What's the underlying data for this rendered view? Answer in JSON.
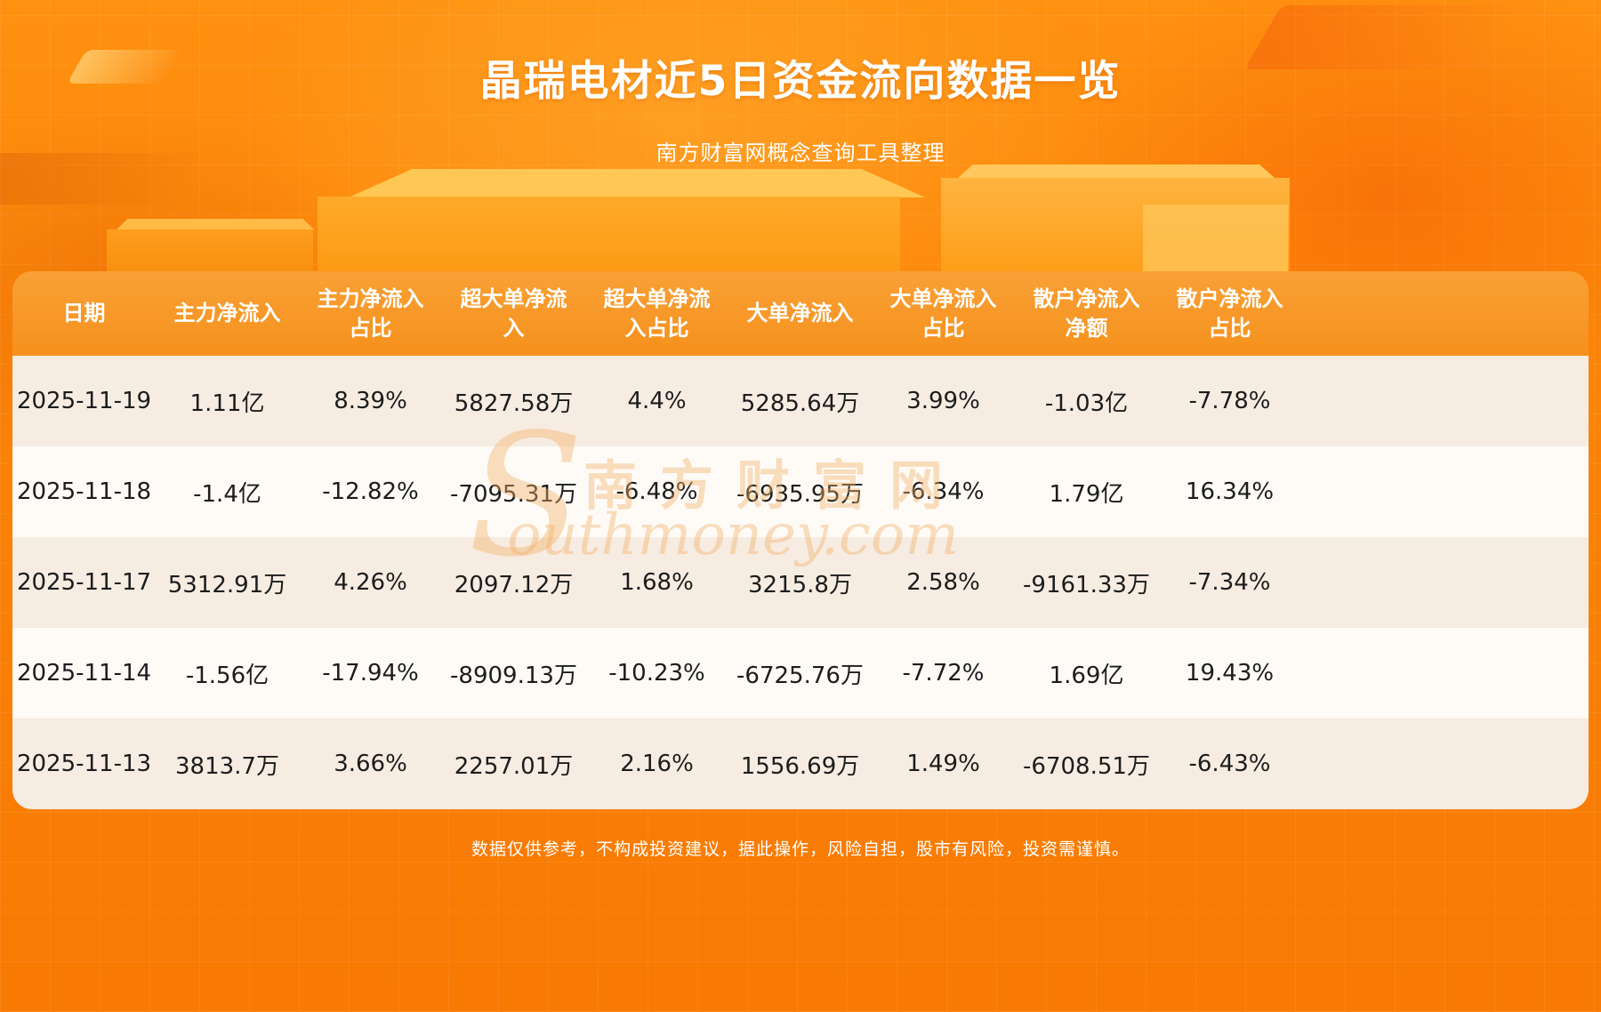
{
  "header": {
    "title": "晶瑞电材近5日资金流向数据一览",
    "subtitle": "南方财富网概念查询工具整理"
  },
  "watermark": {
    "logo": "S",
    "text_cn": "南方财富网",
    "text_en": "outhmoney.com"
  },
  "footer": {
    "disclaimer": "数据仅供参考，不构成投资建议，据此操作，风险自担，股市有风险，投资需谨慎。"
  },
  "colors": {
    "background_top": "#ff9110",
    "background_bottom": "#f87a03",
    "header_row_top": "#f9a035",
    "header_row_bottom": "#f5911d",
    "row_beige": "#f7ece2",
    "row_white": "#fefbf7",
    "title_text": "#ffffff",
    "table_text": "#1c1c1c"
  },
  "chart_data": {
    "type": "table",
    "title": "晶瑞电材近5日资金流向数据一览",
    "columns": [
      "日期",
      "主力净流入",
      "主力净流入\n占比",
      "超大单净流\n入",
      "超大单净流\n入占比",
      "大单净流入",
      "大单净流入\n占比",
      "散户净流入\n净额",
      "散户净流入\n占比"
    ],
    "rows": [
      [
        "2025-11-19",
        "1.11亿",
        "8.39%",
        "5827.58万",
        "4.4%",
        "5285.64万",
        "3.99%",
        "-1.03亿",
        "-7.78%"
      ],
      [
        "2025-11-18",
        "-1.4亿",
        "-12.82%",
        "-7095.31万",
        "-6.48%",
        "-6935.95万",
        "-6.34%",
        "1.79亿",
        "16.34%"
      ],
      [
        "2025-11-17",
        "5312.91万",
        "4.26%",
        "2097.12万",
        "1.68%",
        "3215.8万",
        "2.58%",
        "-9161.33万",
        "-7.34%"
      ],
      [
        "2025-11-14",
        "-1.56亿",
        "-17.94%",
        "-8909.13万",
        "-10.23%",
        "-6725.76万",
        "-7.72%",
        "1.69亿",
        "19.43%"
      ],
      [
        "2025-11-13",
        "3813.7万",
        "3.66%",
        "2257.01万",
        "2.16%",
        "1556.69万",
        "1.49%",
        "-6708.51万",
        "-6.43%"
      ]
    ]
  }
}
